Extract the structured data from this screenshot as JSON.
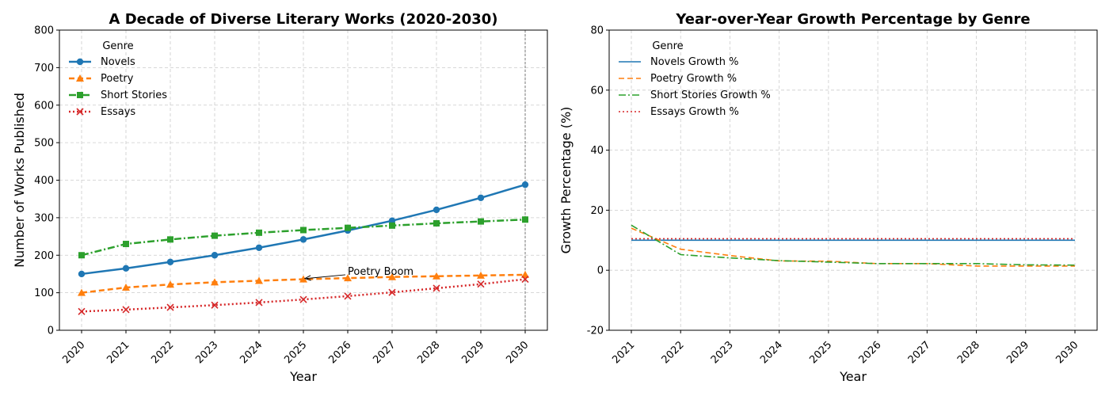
{
  "chart_data": [
    {
      "type": "line",
      "title": "A Decade of Diverse Literary Works (2020-2030)",
      "xlabel": "Year",
      "ylabel": "Number of Works Published",
      "x": [
        2020,
        2021,
        2022,
        2023,
        2024,
        2025,
        2026,
        2027,
        2028,
        2029,
        2030
      ],
      "ylim": [
        0,
        800
      ],
      "yticks": [
        0,
        100,
        200,
        300,
        400,
        500,
        600,
        700,
        800
      ],
      "grid": true,
      "legend_title": "Genre",
      "legend_position": "upper-left",
      "series": [
        {
          "name": "Novels",
          "color": "#1f77b4",
          "linestyle": "solid",
          "marker": "circle",
          "values": [
            150,
            165,
            182,
            200,
            220,
            242,
            266,
            292,
            321,
            353,
            388
          ]
        },
        {
          "name": "Poetry",
          "color": "#ff7f0e",
          "linestyle": "dashed",
          "marker": "triangle",
          "values": [
            100,
            114,
            122,
            128,
            132,
            136,
            139,
            142,
            144,
            146,
            148
          ]
        },
        {
          "name": "Short Stories",
          "color": "#2ca02c",
          "linestyle": "dashdot",
          "marker": "square",
          "values": [
            200,
            230,
            242,
            252,
            260,
            267,
            273,
            279,
            285,
            290,
            295
          ]
        },
        {
          "name": "Essays",
          "color": "#d62728",
          "linestyle": "dotted",
          "marker": "x",
          "values": [
            50,
            55,
            61,
            67,
            74,
            82,
            91,
            101,
            112,
            123,
            136
          ]
        }
      ],
      "annotations": [
        {
          "text": "Poetry Boom",
          "x": 2025,
          "y": 136,
          "text_x": 2026,
          "text_y": 150
        }
      ],
      "vline": {
        "x": 2030
      }
    },
    {
      "type": "line",
      "title": "Year-over-Year Growth Percentage by Genre",
      "xlabel": "Year",
      "ylabel": "Growth Percentage (%)",
      "x": [
        2021,
        2022,
        2023,
        2024,
        2025,
        2026,
        2027,
        2028,
        2029,
        2030
      ],
      "ylim": [
        -20,
        80
      ],
      "yticks": [
        -20,
        0,
        20,
        40,
        60,
        80
      ],
      "grid": true,
      "legend_title": "Genre",
      "legend_position": "upper-left",
      "series": [
        {
          "name": "Novels Growth %",
          "color": "#1f77b4",
          "linestyle": "solid",
          "values": [
            10,
            10,
            10,
            10,
            10,
            10,
            10,
            10,
            10,
            10
          ]
        },
        {
          "name": "Poetry Growth %",
          "color": "#ff7f0e",
          "linestyle": "dashed",
          "values": [
            14,
            7,
            4.9,
            3.1,
            3.0,
            2.2,
            2.2,
            1.4,
            1.4,
            1.4
          ]
        },
        {
          "name": "Short Stories Growth %",
          "color": "#2ca02c",
          "linestyle": "dashdot",
          "values": [
            15,
            5.2,
            4.1,
            3.2,
            2.7,
            2.2,
            2.2,
            2.2,
            1.8,
            1.7
          ]
        },
        {
          "name": "Essays Growth %",
          "color": "#d62728",
          "linestyle": "dotted",
          "values": [
            10.5,
            10.5,
            10.5,
            10.5,
            10.5,
            10.5,
            10.5,
            10.5,
            10.5,
            10.5
          ]
        }
      ]
    }
  ]
}
